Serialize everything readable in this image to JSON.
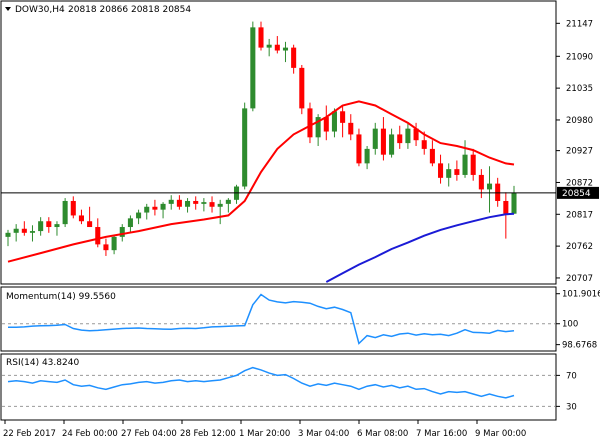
{
  "chart_data": [
    {
      "type": "candlestick",
      "title": "DOW30,H4",
      "ohlc_text": "20818 20866 20818 20854",
      "yticks": [
        21147,
        21090,
        21035,
        20980,
        20927,
        20872,
        20817,
        20762,
        20707
      ],
      "ylim": [
        20700,
        21170
      ],
      "current_price": 20854,
      "current_price_label": "20854",
      "xticks": [
        "22 Feb 2017",
        "24 Feb 00:00",
        "27 Feb 04:00",
        "28 Feb 12:00",
        "1 Mar 20:00",
        "3 Mar 04:00",
        "6 Mar 08:00",
        "7 Mar 16:00",
        "9 Mar 00:00"
      ],
      "candles": [
        [
          20778,
          20790,
          20762,
          20785
        ],
        [
          20785,
          20800,
          20770,
          20792
        ],
        [
          20792,
          20805,
          20780,
          20785
        ],
        [
          20785,
          20798,
          20770,
          20788
        ],
        [
          20788,
          20812,
          20780,
          20805
        ],
        [
          20805,
          20812,
          20785,
          20795
        ],
        [
          20795,
          20805,
          20780,
          20800
        ],
        [
          20800,
          20845,
          20795,
          20840
        ],
        [
          20840,
          20848,
          20810,
          20815
        ],
        [
          20815,
          20825,
          20800,
          20805
        ],
        [
          20805,
          20830,
          20795,
          20795
        ],
        [
          20795,
          20810,
          20760,
          20765
        ],
        [
          20765,
          20775,
          20745,
          20755
        ],
        [
          20755,
          20780,
          20748,
          20778
        ],
        [
          20778,
          20800,
          20770,
          20795
        ],
        [
          20795,
          20815,
          20785,
          20810
        ],
        [
          20810,
          20825,
          20800,
          20820
        ],
        [
          20820,
          20835,
          20808,
          20830
        ],
        [
          20830,
          20842,
          20815,
          20825
        ],
        [
          20825,
          20838,
          20810,
          20835
        ],
        [
          20835,
          20850,
          20825,
          20842
        ],
        [
          20842,
          20850,
          20825,
          20830
        ],
        [
          20830,
          20845,
          20820,
          20840
        ],
        [
          20840,
          20848,
          20825,
          20835
        ],
        [
          20835,
          20845,
          20822,
          20838
        ],
        [
          20838,
          20848,
          20820,
          20830
        ],
        [
          20830,
          20842,
          20800,
          20835
        ],
        [
          20835,
          20845,
          20820,
          20842
        ],
        [
          20842,
          20868,
          20835,
          20865
        ],
        [
          20865,
          21010,
          20860,
          21000
        ],
        [
          21000,
          21150,
          20995,
          21140
        ],
        [
          21140,
          21150,
          21100,
          21105
        ],
        [
          21105,
          21120,
          21090,
          21110
        ],
        [
          21110,
          21125,
          21095,
          21100
        ],
        [
          21100,
          21115,
          21080,
          21105
        ],
        [
          21105,
          21110,
          21060,
          21070
        ],
        [
          21070,
          21075,
          20990,
          21000
        ],
        [
          21000,
          21010,
          20940,
          20950
        ],
        [
          20950,
          20990,
          20935,
          20985
        ],
        [
          20985,
          21005,
          20945,
          20960
        ],
        [
          20960,
          21000,
          20950,
          20995
        ],
        [
          20995,
          21005,
          20950,
          20975
        ],
        [
          20975,
          20990,
          20945,
          20955
        ],
        [
          20955,
          20965,
          20900,
          20905
        ],
        [
          20905,
          20935,
          20895,
          20930
        ],
        [
          20930,
          20975,
          20920,
          20965
        ],
        [
          20965,
          20985,
          20910,
          20920
        ],
        [
          20920,
          20965,
          20915,
          20955
        ],
        [
          20955,
          20970,
          20930,
          20940
        ],
        [
          20940,
          20975,
          20930,
          20965
        ],
        [
          20965,
          20975,
          20935,
          20945
        ],
        [
          20945,
          20960,
          20920,
          20930
        ],
        [
          20930,
          20945,
          20900,
          20905
        ],
        [
          20905,
          20920,
          20870,
          20880
        ],
        [
          20880,
          20905,
          20865,
          20895
        ],
        [
          20895,
          20910,
          20875,
          20885
        ],
        [
          20885,
          20945,
          20880,
          20920
        ],
        [
          20920,
          20930,
          20875,
          20885
        ],
        [
          20885,
          20895,
          20845,
          20860
        ],
        [
          20860,
          20900,
          20820,
          20870
        ],
        [
          20870,
          20880,
          20830,
          20840
        ],
        [
          20840,
          20855,
          20775,
          20818
        ],
        [
          20818,
          20866,
          20818,
          20854
        ]
      ],
      "ma_fast": [
        [
          0,
          20735
        ],
        [
          4,
          20750
        ],
        [
          8,
          20765
        ],
        [
          12,
          20778
        ],
        [
          16,
          20788
        ],
        [
          20,
          20800
        ],
        [
          24,
          20808
        ],
        [
          27,
          20815
        ],
        [
          29,
          20840
        ],
        [
          31,
          20890
        ],
        [
          33,
          20930
        ],
        [
          35,
          20955
        ],
        [
          37,
          20970
        ],
        [
          39,
          20985
        ],
        [
          41,
          21005
        ],
        [
          43,
          21012
        ],
        [
          45,
          21005
        ],
        [
          47,
          20990
        ],
        [
          49,
          20975
        ],
        [
          51,
          20955
        ],
        [
          53,
          20940
        ],
        [
          55,
          20935
        ],
        [
          57,
          20928
        ],
        [
          59,
          20915
        ],
        [
          61,
          20905
        ],
        [
          62,
          20903
        ]
      ],
      "ma_slow": [
        [
          39,
          20700
        ],
        [
          41,
          20715
        ],
        [
          43,
          20730
        ],
        [
          45,
          20743
        ],
        [
          47,
          20757
        ],
        [
          49,
          20768
        ],
        [
          51,
          20780
        ],
        [
          53,
          20790
        ],
        [
          55,
          20798
        ],
        [
          57,
          20805
        ],
        [
          59,
          20812
        ],
        [
          61,
          20817
        ],
        [
          62,
          20818
        ]
      ]
    },
    {
      "type": "line",
      "title": "Momentum(14) 99.5560",
      "yticks": [
        101.9016,
        100,
        98.6768
      ],
      "ylim": [
        98.4,
        102.2
      ],
      "values": [
        99.78,
        99.78,
        99.8,
        99.85,
        99.87,
        99.88,
        99.9,
        99.95,
        99.7,
        99.6,
        99.55,
        99.58,
        99.62,
        99.66,
        99.7,
        99.72,
        99.73,
        99.7,
        99.68,
        99.66,
        99.65,
        99.7,
        99.72,
        99.7,
        99.74,
        99.8,
        99.82,
        99.84,
        99.86,
        99.88,
        101.2,
        101.85,
        101.5,
        101.38,
        101.32,
        101.4,
        101.36,
        101.3,
        101.1,
        100.95,
        101.05,
        100.9,
        100.7,
        98.75,
        99.25,
        99.12,
        99.3,
        99.2,
        99.35,
        99.4,
        99.28,
        99.37,
        99.3,
        99.33,
        99.25,
        99.4,
        99.62,
        99.45,
        99.44,
        99.4,
        99.58,
        99.5,
        99.55
      ]
    },
    {
      "type": "line",
      "title": "RSI(14) 43.8240",
      "yticks": [
        70,
        30
      ],
      "ylim": [
        15,
        95
      ],
      "values": [
        62,
        63,
        62,
        60,
        63,
        62,
        61,
        64,
        58,
        56,
        57,
        54,
        52,
        55,
        58,
        59,
        61,
        62,
        60,
        61,
        63,
        64,
        62,
        63,
        62,
        63,
        64,
        67,
        70,
        76,
        80,
        77,
        73,
        70,
        71,
        66,
        60,
        56,
        59,
        57,
        60,
        58,
        56,
        52,
        56,
        58,
        55,
        57,
        54,
        56,
        52,
        53,
        49,
        46,
        49,
        48,
        49,
        46,
        43,
        46,
        43,
        41,
        44
      ]
    }
  ]
}
